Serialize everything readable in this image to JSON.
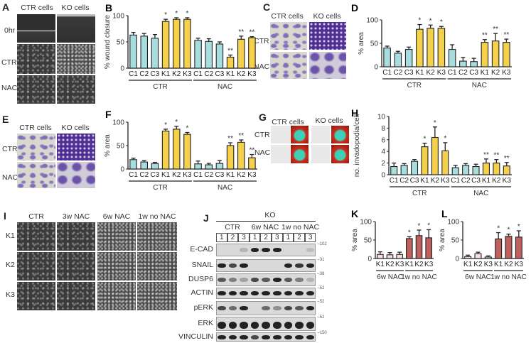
{
  "panels": {
    "A": {
      "label": "A",
      "col_headers": [
        "CTR cells",
        "KO cells"
      ],
      "row_labels": [
        "0hr",
        "CTR",
        "NAC"
      ]
    },
    "C": {
      "label": "C",
      "col_headers": [
        "CTR cells",
        "KO cells"
      ],
      "row_labels": [
        "CTR",
        "NAC"
      ]
    },
    "E": {
      "label": "E",
      "col_headers": [
        "CTR cells",
        "KO cells"
      ],
      "row_labels": [
        "CTR",
        "NAC"
      ]
    },
    "G": {
      "label": "G",
      "col_headers": [
        "CTR cells",
        "KO cells"
      ],
      "row_labels": [
        "CTR",
        "NAC"
      ]
    },
    "I": {
      "label": "I",
      "col_headers": [
        "CTR",
        "3w NAC",
        "6w NAC",
        "1w no NAC"
      ],
      "row_labels": [
        "K1",
        "K2",
        "K3"
      ]
    },
    "J": {
      "label": "J",
      "top_label": "KO",
      "group_labels": [
        "CTR",
        "6w NAC",
        "1w no NAC"
      ],
      "lanes": [
        "1",
        "2",
        "3",
        "1",
        "2",
        "3",
        "1",
        "2",
        "3"
      ],
      "rows": [
        {
          "name": "E-CAD",
          "marker": "102"
        },
        {
          "name": "SNAIL",
          "marker": "31"
        },
        {
          "name": "DUSP6",
          "marker": "38"
        },
        {
          "name": "ACTIN",
          "marker": "52"
        },
        {
          "name": "pERK",
          "marker": "52"
        },
        {
          "name": "ERK",
          "marker": "52"
        },
        {
          "name": "VINCULIN",
          "marker": "150"
        }
      ]
    }
  },
  "colors": {
    "ctr_bar": "#a8dde0",
    "ko_bar": "#f5d04a",
    "k_light_bar": "#f6dede",
    "k_dark_bar": "#c0605e",
    "axis": "#222222"
  },
  "chart_data": [
    {
      "id": "B",
      "type": "bar",
      "title": "",
      "ylabel": "% wound closure",
      "xlabel": "",
      "ylim": [
        0,
        100
      ],
      "yticks": [
        0,
        50,
        100
      ],
      "categories": [
        "C1",
        "C2",
        "C3",
        "K1",
        "K2",
        "K3",
        "C1",
        "C2",
        "C3",
        "K1",
        "K2",
        "K3"
      ],
      "groups": [
        {
          "label": "CTR",
          "span": [
            0,
            5
          ]
        },
        {
          "label": "NAC",
          "span": [
            6,
            11
          ]
        }
      ],
      "values": [
        63,
        61,
        57,
        89,
        93,
        93,
        53,
        51,
        46,
        21,
        55,
        58
      ],
      "errors": [
        5,
        5,
        7,
        4,
        3,
        3,
        4,
        5,
        4,
        4,
        6,
        2
      ],
      "annotations": [
        "",
        "",
        "",
        "*",
        "*",
        "*",
        "",
        "",
        "",
        "**",
        "**",
        "**"
      ]
    },
    {
      "id": "D",
      "type": "bar",
      "title": "",
      "ylabel": "% area",
      "xlabel": "",
      "ylim": [
        0,
        100
      ],
      "yticks": [
        0,
        50,
        100
      ],
      "categories": [
        "C1",
        "C2",
        "C3",
        "K1",
        "K2",
        "K3",
        "C1",
        "C2",
        "C3",
        "K1",
        "K2",
        "K3"
      ],
      "groups": [
        {
          "label": "CTR",
          "span": [
            0,
            5
          ]
        },
        {
          "label": "NAC",
          "span": [
            6,
            11
          ]
        }
      ],
      "values": [
        40,
        29,
        37,
        80,
        82,
        82,
        37,
        12,
        11,
        52,
        55,
        52
      ],
      "errors": [
        4,
        4,
        5,
        10,
        7,
        4,
        10,
        8,
        7,
        6,
        16,
        7
      ],
      "annotations": [
        "",
        "",
        "",
        "*",
        "*",
        "*",
        "",
        "",
        "",
        "**",
        "**",
        "**"
      ]
    },
    {
      "id": "F",
      "type": "bar",
      "title": "",
      "ylabel": "% area",
      "xlabel": "",
      "ylim": [
        0,
        100
      ],
      "yticks": [
        0,
        50,
        100
      ],
      "categories": [
        "C1",
        "C2",
        "C3",
        "K1",
        "K2",
        "K3",
        "C1",
        "C2",
        "C3",
        "K1",
        "K2",
        "K3"
      ],
      "groups": [
        {
          "label": "CTR",
          "span": [
            0,
            5
          ]
        },
        {
          "label": "NAC",
          "span": [
            6,
            11
          ]
        }
      ],
      "values": [
        20,
        15,
        12,
        81,
        85,
        74,
        11,
        9,
        12,
        50,
        57,
        24
      ],
      "errors": [
        3,
        3,
        2,
        4,
        6,
        4,
        6,
        3,
        6,
        6,
        5,
        7
      ],
      "annotations": [
        "",
        "",
        "",
        "*",
        "*",
        "*",
        "",
        "",
        "",
        "**",
        "**",
        "**"
      ]
    },
    {
      "id": "H",
      "type": "bar",
      "title": "",
      "ylabel": "no. invadopodia/cell",
      "xlabel": "",
      "ylim": [
        0,
        10
      ],
      "yticks": [
        0,
        2,
        4,
        6,
        8,
        10
      ],
      "categories": [
        "C1",
        "C2",
        "C3",
        "K1",
        "K2",
        "K3",
        "C1",
        "C2",
        "C3",
        "K1",
        "K2",
        "K3"
      ],
      "groups": [
        {
          "label": "CTR",
          "span": [
            0,
            5
          ]
        },
        {
          "label": "NAC",
          "span": [
            6,
            11
          ]
        }
      ],
      "values": [
        1.4,
        1.6,
        2.3,
        4.8,
        6.4,
        4.1,
        1.2,
        1.6,
        1.4,
        2.0,
        2.0,
        1.5
      ],
      "errors": [
        0.6,
        0.3,
        0.3,
        0.6,
        1.8,
        1.4,
        0.4,
        0.3,
        0.4,
        0.7,
        0.6,
        0.6
      ],
      "annotations": [
        "",
        "",
        "",
        "*",
        "*",
        "*",
        "",
        "",
        "",
        "**",
        "**",
        "**"
      ]
    },
    {
      "id": "K",
      "type": "bar",
      "title": "",
      "ylabel": "% area",
      "xlabel": "",
      "ylim": [
        0,
        100
      ],
      "yticks": [
        0,
        50,
        100
      ],
      "categories": [
        "K1",
        "K2",
        "K3",
        "K1",
        "K2",
        "K3"
      ],
      "groups": [
        {
          "label": "6w NAC",
          "span": [
            0,
            2
          ]
        },
        {
          "label": "1w no NAC",
          "span": [
            3,
            5
          ]
        }
      ],
      "values": [
        11,
        10,
        11,
        54,
        62,
        56
      ],
      "errors": [
        7,
        6,
        6,
        5,
        15,
        22
      ],
      "annotations": [
        "",
        "",
        "",
        "*",
        "*",
        "*"
      ]
    },
    {
      "id": "L",
      "type": "bar",
      "title": "",
      "ylabel": "% area",
      "xlabel": "",
      "ylim": [
        0,
        100
      ],
      "yticks": [
        0,
        50,
        100
      ],
      "categories": [
        "K1",
        "K2",
        "K3",
        "K1",
        "K2",
        "K3"
      ],
      "groups": [
        {
          "label": "6w NAC",
          "span": [
            0,
            2
          ]
        },
        {
          "label": "1w no NAC",
          "span": [
            3,
            5
          ]
        }
      ],
      "values": [
        5,
        13,
        4,
        53,
        60,
        58
      ],
      "errors": [
        4,
        4,
        3,
        17,
        6,
        17
      ],
      "annotations": [
        "",
        "",
        "",
        "*",
        "*",
        "*"
      ]
    }
  ]
}
